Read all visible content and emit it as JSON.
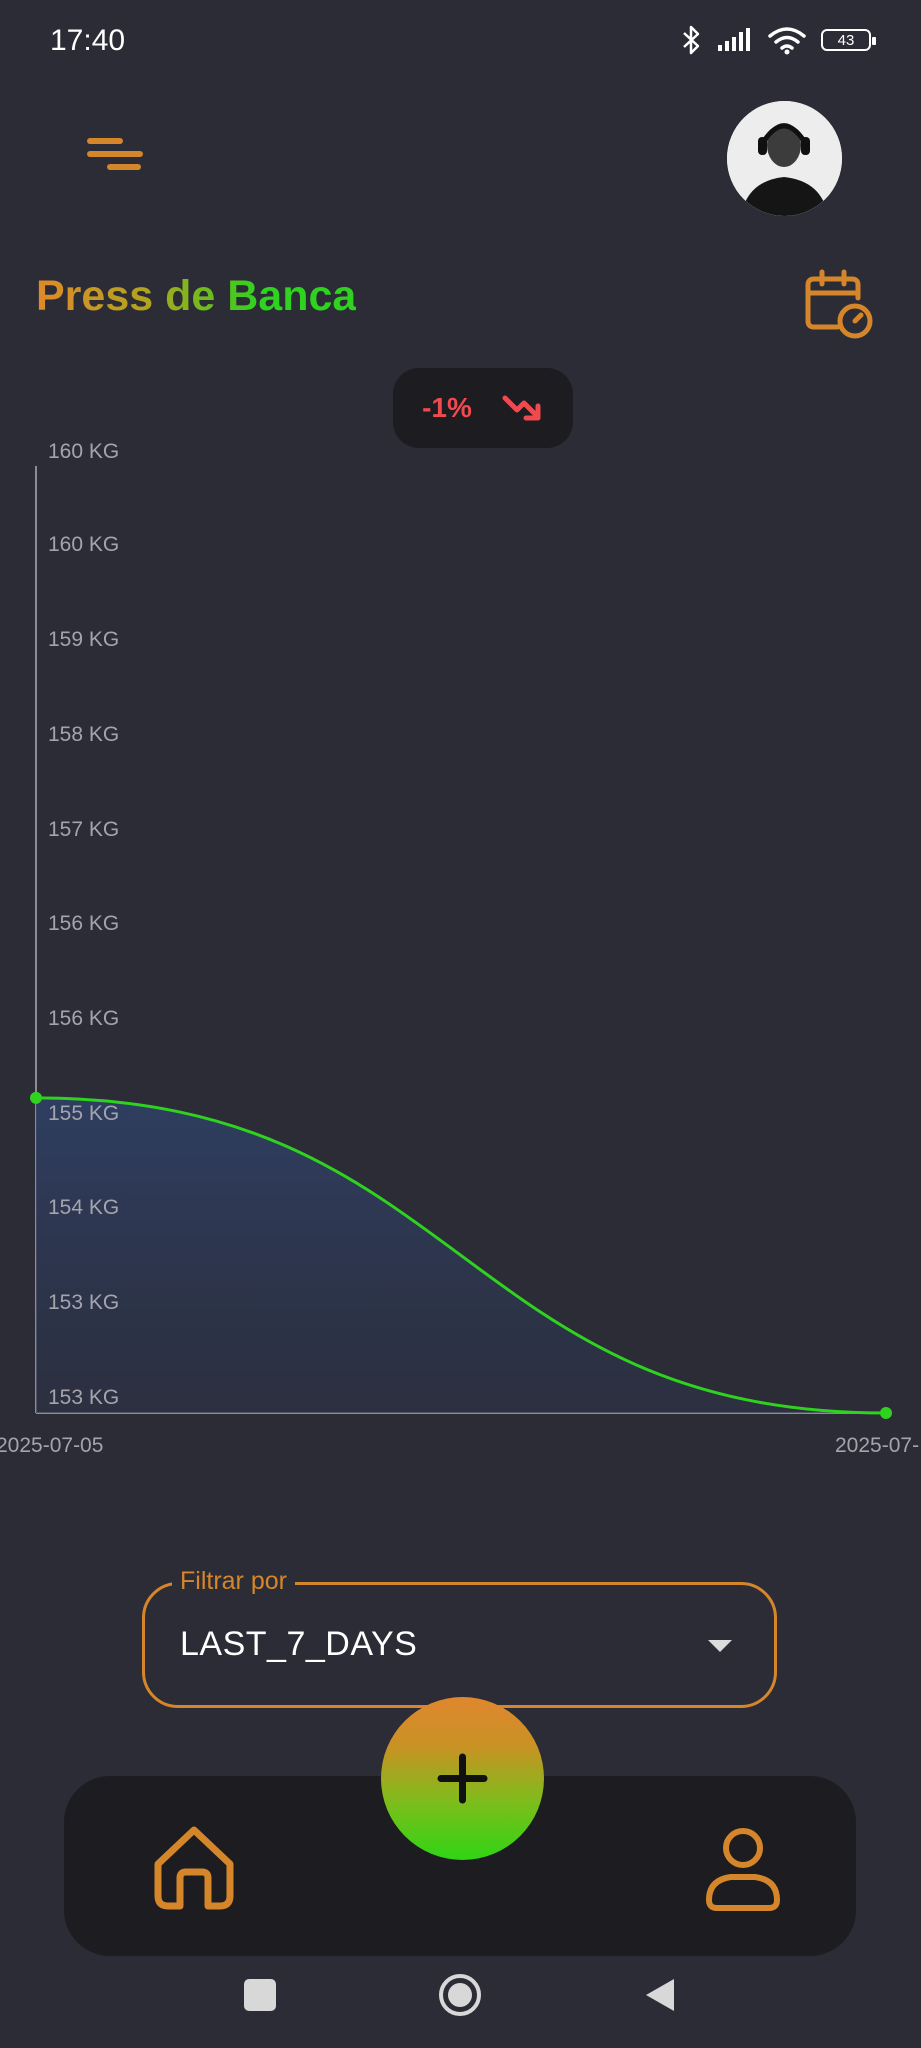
{
  "status_bar": {
    "time": "17:40",
    "battery": "43"
  },
  "header": {
    "title": "Press de Banca"
  },
  "trend": {
    "value": "-1%",
    "direction": "down"
  },
  "chart_data": {
    "type": "area",
    "x": [
      "2025-07-05",
      "2025-07-"
    ],
    "series": [
      {
        "values": [
          155.3,
          153.0
        ]
      }
    ],
    "yticks": [
      "160 KG",
      "160 KG",
      "159 KG",
      "158 KG",
      "157 KG",
      "156 KG",
      "156 KG",
      "155 KG",
      "154 KG",
      "153 KG",
      "153 KG"
    ],
    "xticks": [
      "2025-07-05",
      "2025-07-"
    ],
    "ylim": [
      153.0,
      160.0
    ],
    "line_color": "#2fd21f",
    "fill_color": "#2e3d5c"
  },
  "filter": {
    "label": "Filtrar por",
    "value": "LAST_7_DAYS"
  },
  "colors": {
    "accent_orange": "#d6862a",
    "accent_green": "#2fd21f",
    "background": "#2b2c36",
    "card": "#1c1c21",
    "negative": "#f04a4f"
  },
  "icons": {
    "menu": "menu-icon",
    "calendar": "calendar-clock-icon",
    "trend": "trending-down-icon",
    "home": "home-icon",
    "profile": "user-icon",
    "add": "plus-icon"
  }
}
